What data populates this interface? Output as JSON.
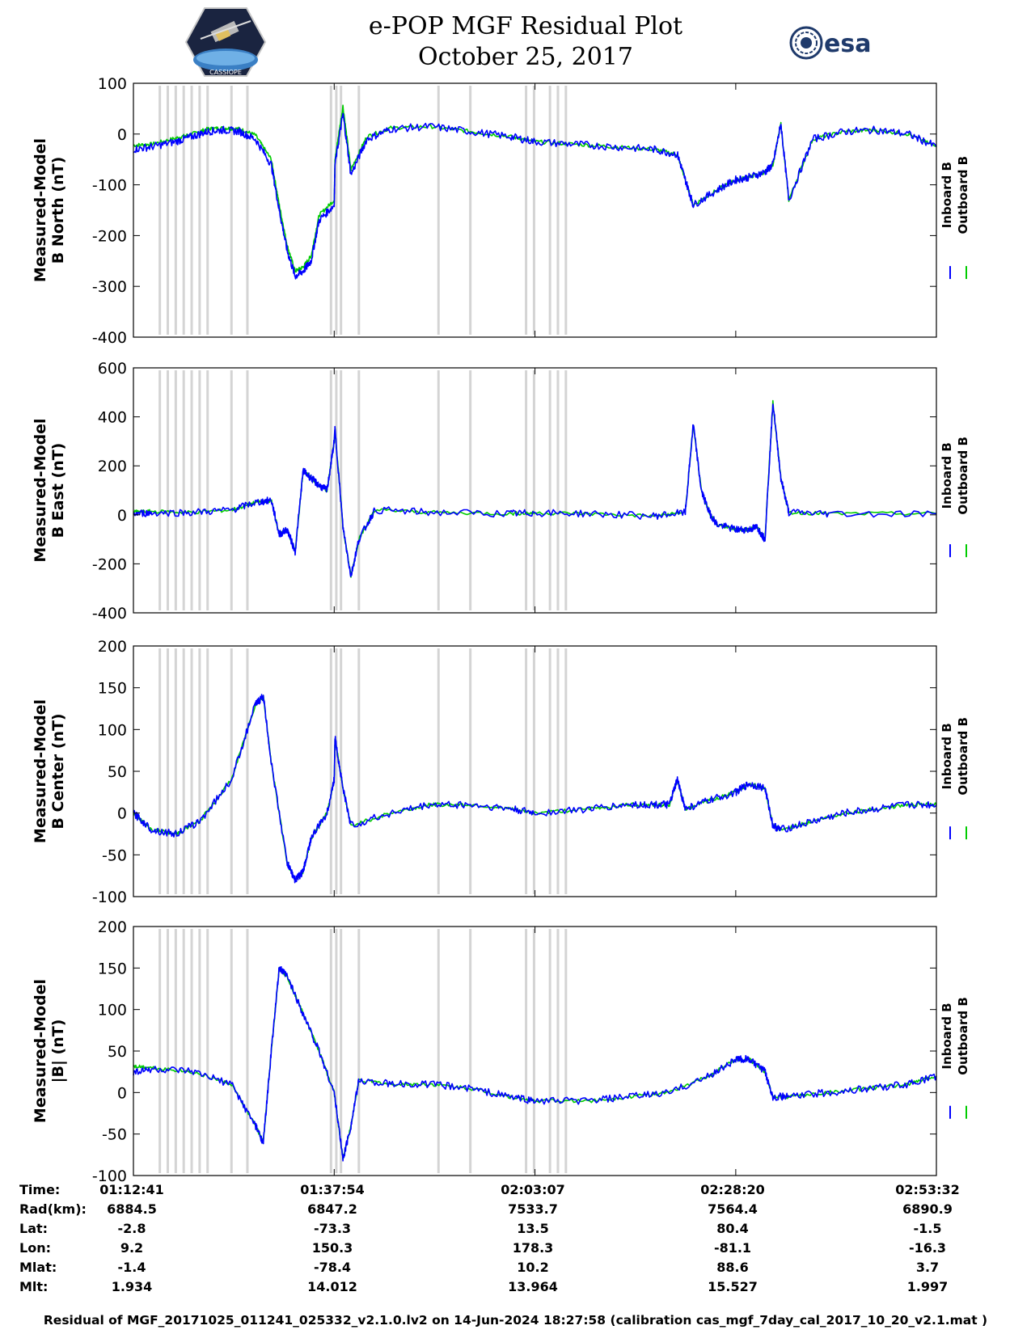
{
  "header": {
    "title": "e-POP MGF Residual Plot",
    "date": "October 25, 2017",
    "logo_left_text": "CASSIOPE",
    "logo_right_text": "esa"
  },
  "colors": {
    "inboard": "#0000ff",
    "outboard": "#00cc00",
    "gap_shading": "#d4d4d4",
    "axes": "#000000"
  },
  "chart_data": [
    {
      "type": "line",
      "ylabel": [
        "Measured-Model",
        "B North (nT)"
      ],
      "ylim": [
        -400,
        100
      ],
      "yticks": [
        -400,
        -300,
        -200,
        -100,
        0,
        100
      ],
      "x": [
        "01:12:41",
        "01:15",
        "01:18",
        "01:20",
        "01:22",
        "01:24",
        "01:26",
        "01:28",
        "01:30",
        "01:31",
        "01:32",
        "01:33",
        "01:34",
        "01:35",
        "01:36",
        "01:37:54",
        "01:38",
        "01:39",
        "01:40",
        "01:42",
        "01:45",
        "01:50",
        "01:55",
        "02:00",
        "02:03:07",
        "02:08",
        "02:13",
        "02:18",
        "02:21",
        "02:22",
        "02:23",
        "02:26",
        "02:28:20",
        "02:30",
        "02:32",
        "02:33",
        "02:34",
        "02:35",
        "02:38",
        "02:42",
        "02:46",
        "02:50",
        "02:53:32"
      ],
      "series": [
        {
          "name": "Inboard B",
          "values": [
            -30,
            -25,
            -15,
            -5,
            5,
            8,
            5,
            -10,
            -60,
            -150,
            -230,
            -280,
            -270,
            -250,
            -170,
            -140,
            -60,
            40,
            -80,
            -10,
            10,
            15,
            5,
            -5,
            -15,
            -20,
            -25,
            -30,
            -40,
            -90,
            -140,
            -110,
            -90,
            -85,
            -75,
            -60,
            20,
            -130,
            -10,
            5,
            8,
            0,
            -25
          ]
        },
        {
          "name": "Outboard B",
          "values": [
            -22,
            -20,
            -8,
            0,
            10,
            12,
            10,
            -2,
            -50,
            -140,
            -220,
            -270,
            -262,
            -240,
            -160,
            -130,
            -50,
            55,
            -70,
            -5,
            12,
            15,
            5,
            -5,
            -15,
            -20,
            -25,
            -30,
            -40,
            -90,
            -140,
            -110,
            -90,
            -85,
            -75,
            -60,
            20,
            -130,
            -10,
            5,
            8,
            0,
            -25
          ]
        }
      ]
    },
    {
      "type": "line",
      "ylabel": [
        "Measured-Model",
        "B East (nT)"
      ],
      "ylim": [
        -400,
        600
      ],
      "yticks": [
        -400,
        -200,
        0,
        200,
        400,
        600
      ],
      "x": [
        "01:12:41",
        "01:15",
        "01:20",
        "01:25",
        "01:28",
        "01:30",
        "01:31",
        "01:32",
        "01:33",
        "01:34",
        "01:35",
        "01:36",
        "01:37",
        "01:37:54",
        "01:38",
        "01:39",
        "01:40",
        "01:41",
        "01:43",
        "01:50",
        "02:00",
        "02:03:07",
        "02:10",
        "02:18",
        "02:22",
        "02:23",
        "02:24",
        "02:25",
        "02:26",
        "02:28:20",
        "02:30",
        "02:31",
        "02:32",
        "02:33",
        "02:34",
        "02:35",
        "02:40",
        "02:53:32"
      ],
      "series": [
        {
          "name": "Inboard B",
          "values": [
            5,
            8,
            10,
            20,
            50,
            60,
            -80,
            -60,
            -150,
            180,
            150,
            120,
            100,
            300,
            350,
            -50,
            -250,
            -100,
            20,
            10,
            5,
            8,
            5,
            -5,
            10,
            370,
            100,
            10,
            -40,
            -60,
            -60,
            -50,
            -100,
            460,
            150,
            10,
            5,
            5
          ]
        },
        {
          "name": "Outboard B",
          "values": [
            12,
            14,
            10,
            20,
            50,
            60,
            -80,
            -60,
            -150,
            180,
            150,
            120,
            100,
            300,
            350,
            -50,
            -250,
            -100,
            20,
            10,
            5,
            8,
            5,
            -5,
            10,
            370,
            100,
            10,
            -40,
            -60,
            -60,
            -50,
            -100,
            460,
            150,
            10,
            5,
            5
          ]
        }
      ]
    },
    {
      "type": "line",
      "ylabel": [
        "Measured-Model",
        "B Center (nT)"
      ],
      "ylim": [
        -100,
        200
      ],
      "yticks": [
        -100,
        -50,
        0,
        50,
        100,
        150,
        200
      ],
      "x": [
        "01:12:41",
        "01:15",
        "01:18",
        "01:21",
        "01:25",
        "01:28",
        "01:29",
        "01:30",
        "01:32",
        "01:33",
        "01:34",
        "01:35",
        "01:37",
        "01:37:54",
        "01:38",
        "01:39",
        "01:40",
        "01:45",
        "01:50",
        "01:55",
        "02:00",
        "02:03:07",
        "02:10",
        "02:15",
        "02:18",
        "02:20",
        "02:21",
        "02:22",
        "02:25",
        "02:28:20",
        "02:30",
        "02:32",
        "02:33",
        "02:34",
        "02:38",
        "02:42",
        "02:46",
        "02:50",
        "02:53:32"
      ],
      "series": [
        {
          "name": "Inboard B",
          "values": [
            0,
            -20,
            -25,
            -10,
            40,
            130,
            140,
            60,
            -60,
            -80,
            -70,
            -30,
            0,
            40,
            90,
            30,
            -15,
            0,
            10,
            10,
            5,
            0,
            5,
            10,
            10,
            10,
            40,
            5,
            15,
            25,
            35,
            30,
            -15,
            -20,
            -10,
            0,
            5,
            10,
            10
          ]
        },
        {
          "name": "Outboard B",
          "values": [
            0,
            -20,
            -25,
            -10,
            40,
            130,
            140,
            60,
            -60,
            -80,
            -70,
            -30,
            0,
            40,
            90,
            30,
            -15,
            0,
            10,
            10,
            5,
            0,
            5,
            10,
            10,
            10,
            40,
            5,
            15,
            25,
            35,
            30,
            -15,
            -20,
            -10,
            0,
            5,
            10,
            10
          ]
        }
      ]
    },
    {
      "type": "line",
      "ylabel": [
        "Measured-Model",
        "|B| (nT)"
      ],
      "ylim": [
        -100,
        200
      ],
      "yticks": [
        -100,
        -50,
        0,
        50,
        100,
        150,
        200
      ],
      "x": [
        "01:12:41",
        "01:15",
        "01:20",
        "01:25",
        "01:28",
        "01:29",
        "01:30",
        "01:31",
        "01:32",
        "01:34",
        "01:36",
        "01:37:54",
        "01:39",
        "01:40",
        "01:41",
        "01:45",
        "01:50",
        "01:55",
        "02:00",
        "02:03:07",
        "02:10",
        "02:15",
        "02:20",
        "02:25",
        "02:28:20",
        "02:30",
        "02:32",
        "02:33",
        "02:35",
        "02:40",
        "02:45",
        "02:50",
        "02:53:32"
      ],
      "series": [
        {
          "name": "Inboard B",
          "values": [
            25,
            28,
            25,
            10,
            -40,
            -60,
            50,
            150,
            140,
            95,
            50,
            0,
            -80,
            -40,
            15,
            10,
            10,
            5,
            -5,
            -10,
            -10,
            -5,
            0,
            20,
            40,
            40,
            25,
            -5,
            -5,
            0,
            5,
            10,
            20
          ]
        },
        {
          "name": "Outboard B",
          "values": [
            32,
            30,
            25,
            10,
            -40,
            -60,
            50,
            150,
            140,
            95,
            50,
            0,
            -80,
            -40,
            15,
            10,
            10,
            5,
            -5,
            -10,
            -10,
            -5,
            0,
            20,
            40,
            40,
            25,
            -5,
            -5,
            0,
            5,
            10,
            20
          ]
        }
      ]
    }
  ],
  "gap_times": [
    "01:16",
    "01:17",
    "01:18",
    "01:19",
    "01:20",
    "01:21",
    "01:22",
    "01:25",
    "01:27",
    "01:37:30",
    "01:38:10",
    "01:38:45",
    "01:41",
    "01:51",
    "01:55",
    "02:02",
    "02:03",
    "02:05",
    "02:06",
    "02:07"
  ],
  "legend": {
    "inboard": "Inboard B",
    "outboard": "Outboard B"
  },
  "info_table": {
    "labels": [
      "Time:",
      "Rad(km):",
      "Lat:",
      "Lon:",
      "Mlat:",
      "Mlt:"
    ],
    "columns": [
      [
        "01:12:41",
        "6884.5",
        "-2.8",
        "9.2",
        "-1.4",
        "1.934"
      ],
      [
        "01:37:54",
        "6847.2",
        "-73.3",
        "150.3",
        "-78.4",
        "14.012"
      ],
      [
        "02:03:07",
        "7533.7",
        "13.5",
        "178.3",
        "10.2",
        "13.964"
      ],
      [
        "02:28:20",
        "7564.4",
        "80.4",
        "-81.1",
        "88.6",
        "15.527"
      ],
      [
        "02:53:32",
        "6890.9",
        "-1.5",
        "-16.3",
        "3.7",
        "1.997"
      ]
    ]
  },
  "footer": "Residual of MGF_20171025_011241_025332_v2.1.0.lv2 on 14-Jun-2024 18:27:58 (calibration cas_mgf_7day_cal_2017_10_20_v2.1.mat )"
}
